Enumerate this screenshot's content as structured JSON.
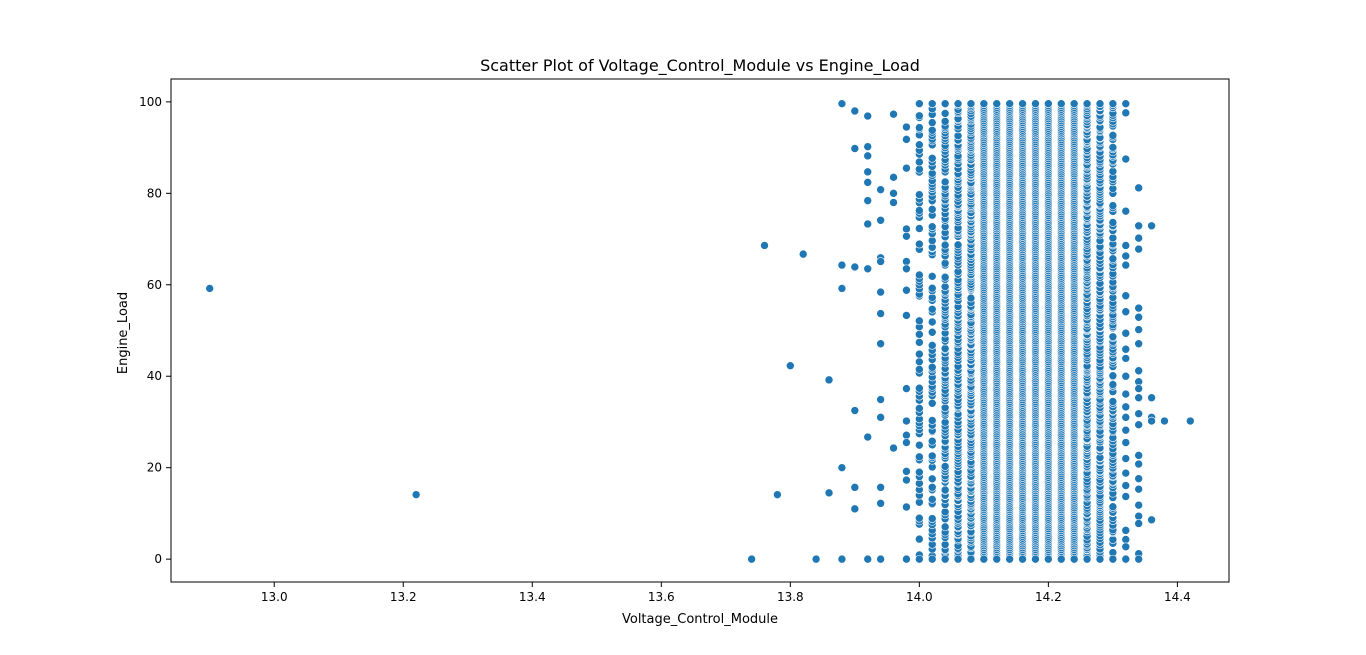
{
  "chart_data": {
    "type": "scatter",
    "title": "Scatter Plot of Voltage_Control_Module vs Engine_Load",
    "xlabel": "Voltage_Control_Module",
    "ylabel": "Engine_Load",
    "xlim": [
      12.84,
      14.48
    ],
    "ylim": [
      -5,
      105
    ],
    "xticks": [
      13.0,
      13.2,
      13.4,
      13.6,
      13.8,
      14.0,
      14.2,
      14.4
    ],
    "yticks": [
      0,
      20,
      40,
      60,
      80,
      100
    ],
    "xtick_labels": [
      "13.0",
      "13.2",
      "13.4",
      "13.6",
      "13.8",
      "14.0",
      "14.2",
      "14.4"
    ],
    "ytick_labels": [
      "0",
      "20",
      "40",
      "60",
      "80",
      "100"
    ],
    "grid": false,
    "series": [
      {
        "name": "Engine_Load",
        "color": "#1f77b4",
        "outlier_points": [
          [
            12.9,
            59.2
          ],
          [
            13.22,
            14.1
          ],
          [
            13.74,
            0
          ],
          [
            13.76,
            68.6
          ],
          [
            13.78,
            14.1
          ],
          [
            13.8,
            42.3
          ],
          [
            13.82,
            66.7
          ],
          [
            13.84,
            0
          ],
          [
            13.86,
            39.2
          ],
          [
            13.86,
            14.5
          ],
          [
            13.88,
            99.6
          ],
          [
            13.88,
            64.3
          ],
          [
            13.88,
            59.2
          ],
          [
            13.88,
            20.0
          ],
          [
            13.88,
            0
          ],
          [
            13.9,
            98.0
          ],
          [
            13.9,
            89.8
          ],
          [
            13.9,
            63.9
          ],
          [
            13.9,
            32.5
          ],
          [
            13.9,
            15.7
          ],
          [
            13.9,
            11.0
          ],
          [
            13.92,
            96.9
          ],
          [
            13.92,
            90.2
          ],
          [
            13.92,
            88.2
          ],
          [
            13.92,
            84.7
          ],
          [
            13.92,
            82.4
          ],
          [
            13.92,
            78.4
          ],
          [
            13.92,
            73.3
          ],
          [
            13.92,
            63.5
          ],
          [
            13.92,
            26.7
          ],
          [
            13.92,
            0
          ],
          [
            13.94,
            80.8
          ],
          [
            13.94,
            74.1
          ],
          [
            13.94,
            65.9
          ],
          [
            13.94,
            65.1
          ],
          [
            13.94,
            58.4
          ],
          [
            13.94,
            53.7
          ],
          [
            13.94,
            47.1
          ],
          [
            13.94,
            34.9
          ],
          [
            13.94,
            31.0
          ],
          [
            13.94,
            15.7
          ],
          [
            13.94,
            12.2
          ],
          [
            13.94,
            0
          ],
          [
            13.96,
            97.3
          ],
          [
            13.96,
            83.5
          ],
          [
            13.96,
            80.0
          ],
          [
            13.96,
            78.0
          ],
          [
            13.96,
            24.3
          ],
          [
            13.98,
            94.5
          ],
          [
            13.98,
            91.8
          ],
          [
            13.98,
            85.5
          ],
          [
            13.98,
            72.2
          ],
          [
            13.98,
            70.6
          ],
          [
            13.98,
            65.1
          ],
          [
            13.98,
            63.5
          ],
          [
            13.98,
            58.8
          ],
          [
            13.98,
            53.3
          ],
          [
            13.98,
            37.3
          ],
          [
            13.98,
            30.2
          ],
          [
            13.98,
            27.1
          ],
          [
            13.98,
            25.5
          ],
          [
            13.98,
            19.2
          ],
          [
            13.98,
            17.3
          ],
          [
            13.98,
            11.4
          ],
          [
            13.98,
            0
          ],
          [
            14.32,
            99.6
          ],
          [
            14.32,
            97.6
          ],
          [
            14.32,
            87.5
          ],
          [
            14.32,
            76.1
          ],
          [
            14.32,
            68.6
          ],
          [
            14.32,
            66.3
          ],
          [
            14.32,
            64.3
          ],
          [
            14.32,
            57.6
          ],
          [
            14.32,
            54.1
          ],
          [
            14.32,
            49.4
          ],
          [
            14.32,
            45.9
          ],
          [
            14.32,
            43.9
          ],
          [
            14.32,
            40.0
          ],
          [
            14.32,
            36.1
          ],
          [
            14.32,
            33.3
          ],
          [
            14.32,
            31.0
          ],
          [
            14.32,
            28.2
          ],
          [
            14.32,
            25.5
          ],
          [
            14.32,
            22.0
          ],
          [
            14.32,
            18.8
          ],
          [
            14.32,
            16.1
          ],
          [
            14.32,
            13.7
          ],
          [
            14.32,
            6.3
          ],
          [
            14.32,
            4.3
          ],
          [
            14.32,
            2.7
          ],
          [
            14.32,
            0
          ],
          [
            14.34,
            81.2
          ],
          [
            14.34,
            72.9
          ],
          [
            14.34,
            70.2
          ],
          [
            14.34,
            67.8
          ],
          [
            14.34,
            54.9
          ],
          [
            14.34,
            52.9
          ],
          [
            14.34,
            50.2
          ],
          [
            14.34,
            47.1
          ],
          [
            14.34,
            41.2
          ],
          [
            14.34,
            38.8
          ],
          [
            14.34,
            37.3
          ],
          [
            14.34,
            35.3
          ],
          [
            14.34,
            31.8
          ],
          [
            14.34,
            29.4
          ],
          [
            14.34,
            22.7
          ],
          [
            14.34,
            20.8
          ],
          [
            14.34,
            17.6
          ],
          [
            14.34,
            15.3
          ],
          [
            14.34,
            11.8
          ],
          [
            14.34,
            9.4
          ],
          [
            14.34,
            7.8
          ],
          [
            14.34,
            1.2
          ],
          [
            14.34,
            0
          ],
          [
            14.36,
            72.9
          ],
          [
            14.36,
            35.3
          ],
          [
            14.36,
            31.0
          ],
          [
            14.36,
            30.2
          ],
          [
            14.36,
            8.6
          ],
          [
            14.38,
            30.2
          ],
          [
            14.42,
            30.2
          ]
        ],
        "dense_columns": [
          {
            "x": 14.0,
            "density": 0.5
          },
          {
            "x": 14.02,
            "density": 0.6
          },
          {
            "x": 14.04,
            "density": 0.7
          },
          {
            "x": 14.06,
            "density": 0.8
          },
          {
            "x": 14.08,
            "density": 0.95
          },
          {
            "x": 14.1,
            "density": 1.0
          },
          {
            "x": 14.12,
            "density": 1.0
          },
          {
            "x": 14.14,
            "density": 1.0
          },
          {
            "x": 14.16,
            "density": 1.0
          },
          {
            "x": 14.18,
            "density": 1.0
          },
          {
            "x": 14.2,
            "density": 1.0
          },
          {
            "x": 14.22,
            "density": 1.0
          },
          {
            "x": 14.24,
            "density": 1.0
          },
          {
            "x": 14.26,
            "density": 0.95
          },
          {
            "x": 14.28,
            "density": 0.85
          },
          {
            "x": 14.3,
            "density": 0.75
          }
        ],
        "dense_column_yrange": [
          0,
          99.6
        ]
      }
    ]
  }
}
